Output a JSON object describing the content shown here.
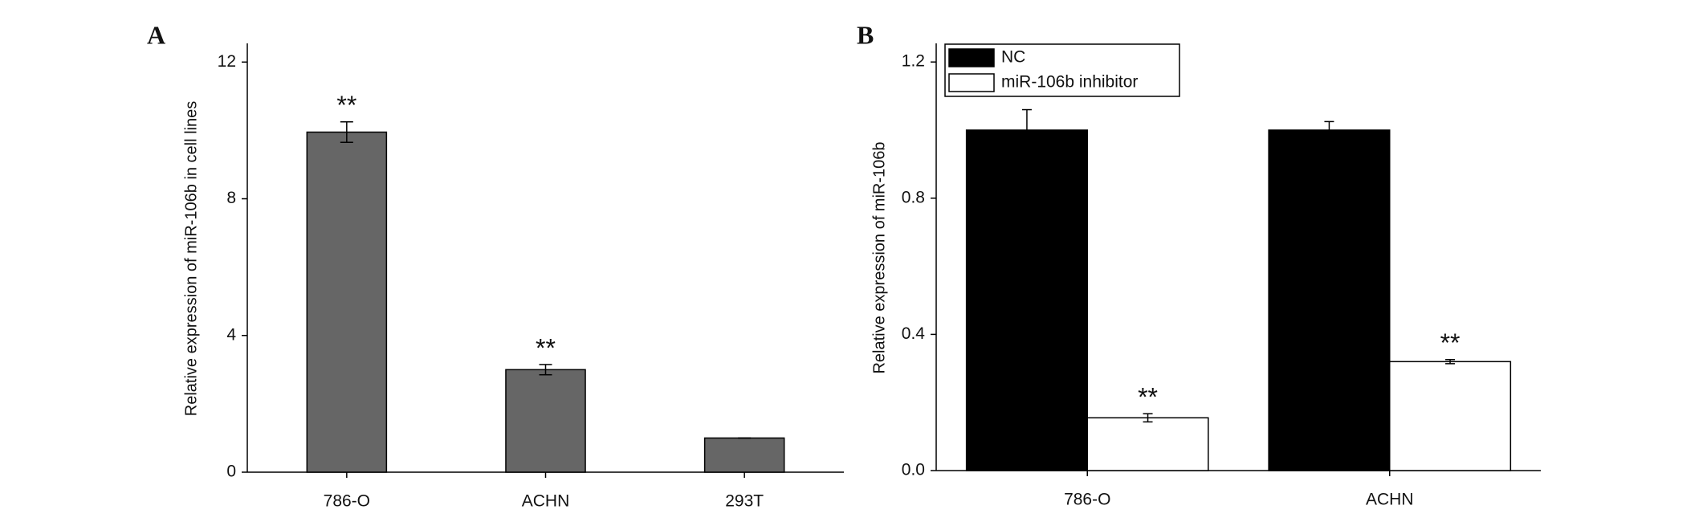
{
  "chart_data": [
    {
      "type": "bar",
      "label": "A",
      "ylabel": "Relative expression of miR-106b in cell lines",
      "categories": [
        "786-O",
        "ACHN",
        "293T"
      ],
      "values": [
        9.95,
        3.0,
        1.0
      ],
      "errors": [
        0.3,
        0.15,
        0.0
      ],
      "annotations": [
        "**",
        "**",
        null
      ],
      "color": "#666666",
      "ylim": [
        0,
        12.5
      ],
      "yticks": [
        0,
        4,
        8,
        12
      ]
    },
    {
      "type": "bar",
      "label": "B",
      "ylabel": "Relative expression of miR-106b",
      "categories": [
        "786-O",
        "ACHN"
      ],
      "series": [
        {
          "name": "NC",
          "color": "#000000",
          "values": [
            1.0,
            1.0
          ],
          "errors": [
            0.06,
            0.025
          ],
          "annotations": [
            null,
            null
          ]
        },
        {
          "name": "miR-106b inhibitor",
          "color": "#ffffff",
          "values": [
            0.155,
            0.32
          ],
          "errors": [
            0.012,
            0.006
          ],
          "annotations": [
            "**",
            "**"
          ]
        }
      ],
      "legend": "upper left",
      "ylim": [
        0,
        1.25
      ],
      "yticks": [
        {
          "value": 0,
          "label": "0.0"
        },
        0.4,
        0.8,
        1.2
      ]
    }
  ]
}
